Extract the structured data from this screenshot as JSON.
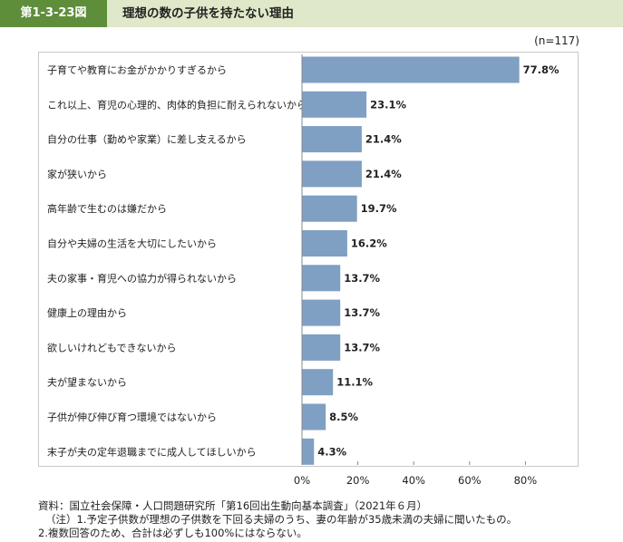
{
  "header": {
    "figure_number": "第1-3-23図",
    "title": "理想の数の子供を持たない理由"
  },
  "sample_size": "(n=117)",
  "colors": {
    "bar": "#7f9fc3",
    "header_label_bg": "#5e8e3a",
    "header_bar_bg": "#dfe8c8"
  },
  "chart_data": {
    "type": "bar",
    "orientation": "horizontal",
    "title": "",
    "xlabel": "",
    "ylabel": "",
    "categories": [
      "子育てや教育にお金がかかりすぎるから",
      "これ以上、育児の心理的、肉体的負担に耐えられないから",
      "自分の仕事（勤めや家業）に差し支えるから",
      "家が狭いから",
      "高年齢で生むのは嫌だから",
      "自分や夫婦の生活を大切にしたいから",
      "夫の家事・育児への協力が得られないから",
      "健康上の理由から",
      "欲しいけれどもできないから",
      "夫が望まないから",
      "子供が伸び伸び育つ環境ではないから",
      "末子が夫の定年退職までに成人してほしいから"
    ],
    "values": [
      77.8,
      23.1,
      21.4,
      21.4,
      19.7,
      16.2,
      13.7,
      13.7,
      13.7,
      11.1,
      8.5,
      4.3
    ],
    "value_labels": [
      "77.8%",
      "23.1%",
      "21.4%",
      "21.4%",
      "19.7%",
      "16.2%",
      "13.7%",
      "13.7%",
      "13.7%",
      "11.1%",
      "8.5%",
      "4.3%"
    ],
    "xlim": [
      0,
      100
    ],
    "x_ticks": [
      0,
      20,
      40,
      60,
      80
    ],
    "x_tick_labels": [
      "0%",
      "20%",
      "40%",
      "60%",
      "80%"
    ],
    "grid": false,
    "legend": "none"
  },
  "footnotes": {
    "source": "資料：国立社会保障・人口問題研究所「第16回出生動向基本調査」（2021年６月）",
    "note1": "（注）1.予定子供数が理想の子供数を下回る夫婦のうち、妻の年齢が35歳未満の夫婦に聞いたもの。",
    "note2": "2.複数回答のため、合計は必ずしも100%にはならない。"
  }
}
